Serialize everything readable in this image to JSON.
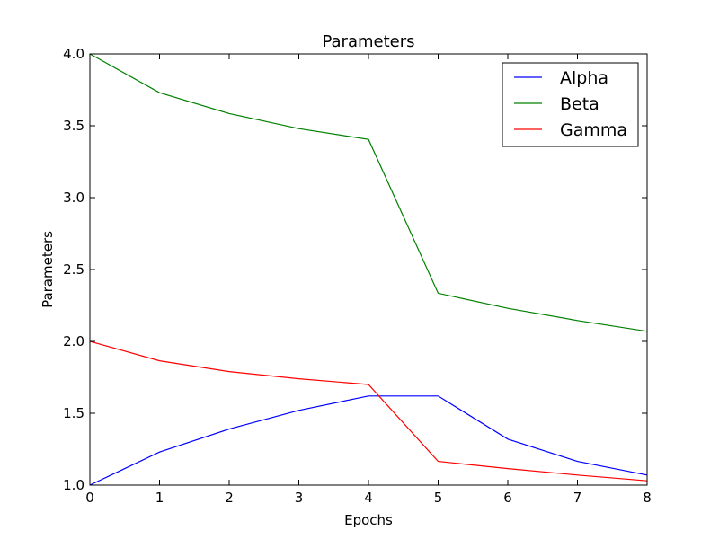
{
  "chart_data": {
    "type": "line",
    "title": "Parameters",
    "xlabel": "Epochs",
    "ylabel": "Parameters",
    "xlim": [
      0,
      8
    ],
    "ylim": [
      1.0,
      4.0
    ],
    "x": [
      0,
      1,
      2,
      3,
      4,
      5,
      6,
      7,
      8
    ],
    "x_ticks": [
      "0",
      "1",
      "2",
      "3",
      "4",
      "5",
      "6",
      "7",
      "8"
    ],
    "y_ticks": [
      "1.0",
      "1.5",
      "2.0",
      "2.5",
      "3.0",
      "3.5",
      "4.0"
    ],
    "grid": false,
    "legend_position": "top-right",
    "series": [
      {
        "name": "Alpha",
        "color": "#0000ff",
        "values": [
          1.0,
          1.23,
          1.39,
          1.52,
          1.62,
          1.62,
          1.32,
          1.165,
          1.07
        ]
      },
      {
        "name": "Beta",
        "color": "#008000",
        "values": [
          4.0,
          3.73,
          3.585,
          3.48,
          3.405,
          2.335,
          2.23,
          2.145,
          2.07
        ]
      },
      {
        "name": "Gamma",
        "color": "#ff0000",
        "values": [
          2.0,
          1.865,
          1.79,
          1.74,
          1.7,
          1.165,
          1.115,
          1.07,
          1.03
        ]
      }
    ]
  }
}
